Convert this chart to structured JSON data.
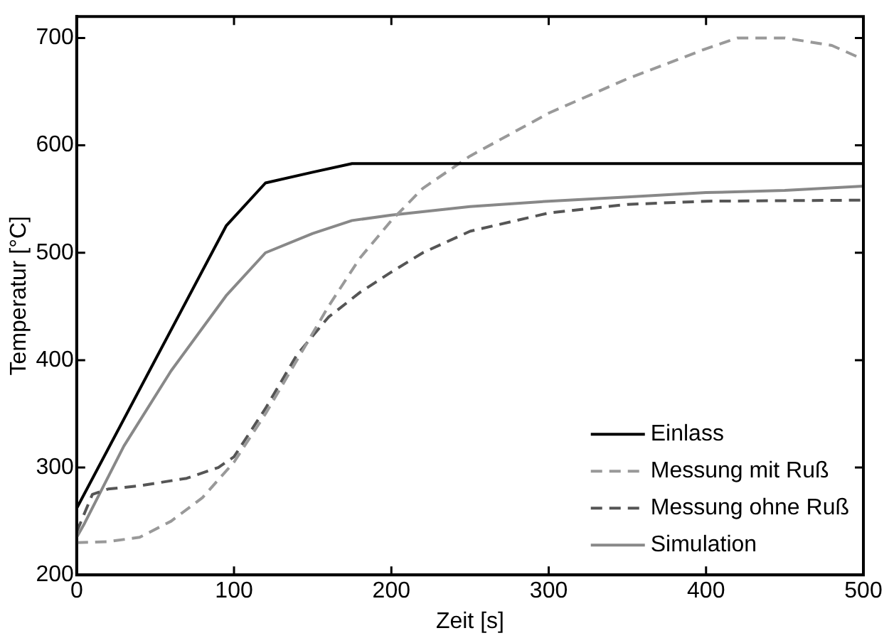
{
  "chart_data": {
    "type": "line",
    "xlabel": "Zeit [s]",
    "ylabel": "Temperatur [°C]",
    "xlim": [
      0,
      500
    ],
    "xticks": [
      0,
      100,
      200,
      300,
      400,
      500
    ],
    "ylim": [
      200,
      720
    ],
    "yticks": [
      200,
      300,
      400,
      500,
      600,
      700
    ],
    "grid": false,
    "legend": "bottom right",
    "marker": "none",
    "series": [
      {
        "name": "Einlass",
        "color": "#000000",
        "line_style": "solid",
        "x": [
          0,
          95,
          120,
          150,
          175,
          500
        ],
        "values": [
          262,
          525,
          565,
          575,
          583,
          583
        ]
      },
      {
        "name": "Messung mit Ruß",
        "color": "#999999",
        "line_style": "dashed",
        "x": [
          0,
          20,
          40,
          60,
          80,
          100,
          120,
          140,
          160,
          180,
          200,
          220,
          250,
          300,
          350,
          400,
          420,
          450,
          480,
          500
        ],
        "values": [
          230,
          231,
          235,
          250,
          272,
          305,
          350,
          400,
          450,
          495,
          530,
          560,
          590,
          630,
          662,
          690,
          700,
          700,
          693,
          680
        ]
      },
      {
        "name": "Messung ohne Ruß",
        "color": "#555555",
        "line_style": "dashed",
        "x": [
          0,
          10,
          20,
          40,
          70,
          90,
          100,
          120,
          140,
          160,
          180,
          200,
          220,
          250,
          300,
          350,
          400,
          500
        ],
        "values": [
          240,
          275,
          280,
          283,
          290,
          300,
          310,
          355,
          405,
          440,
          463,
          482,
          500,
          520,
          537,
          545,
          548,
          549
        ]
      },
      {
        "name": "Simulation",
        "color": "#888888",
        "line_style": "solid",
        "x": [
          0,
          5,
          30,
          60,
          95,
          120,
          150,
          175,
          200,
          250,
          300,
          350,
          400,
          450,
          500
        ],
        "values": [
          235,
          248,
          320,
          390,
          460,
          500,
          518,
          530,
          535,
          543,
          548,
          552,
          556,
          558,
          562
        ]
      }
    ]
  }
}
